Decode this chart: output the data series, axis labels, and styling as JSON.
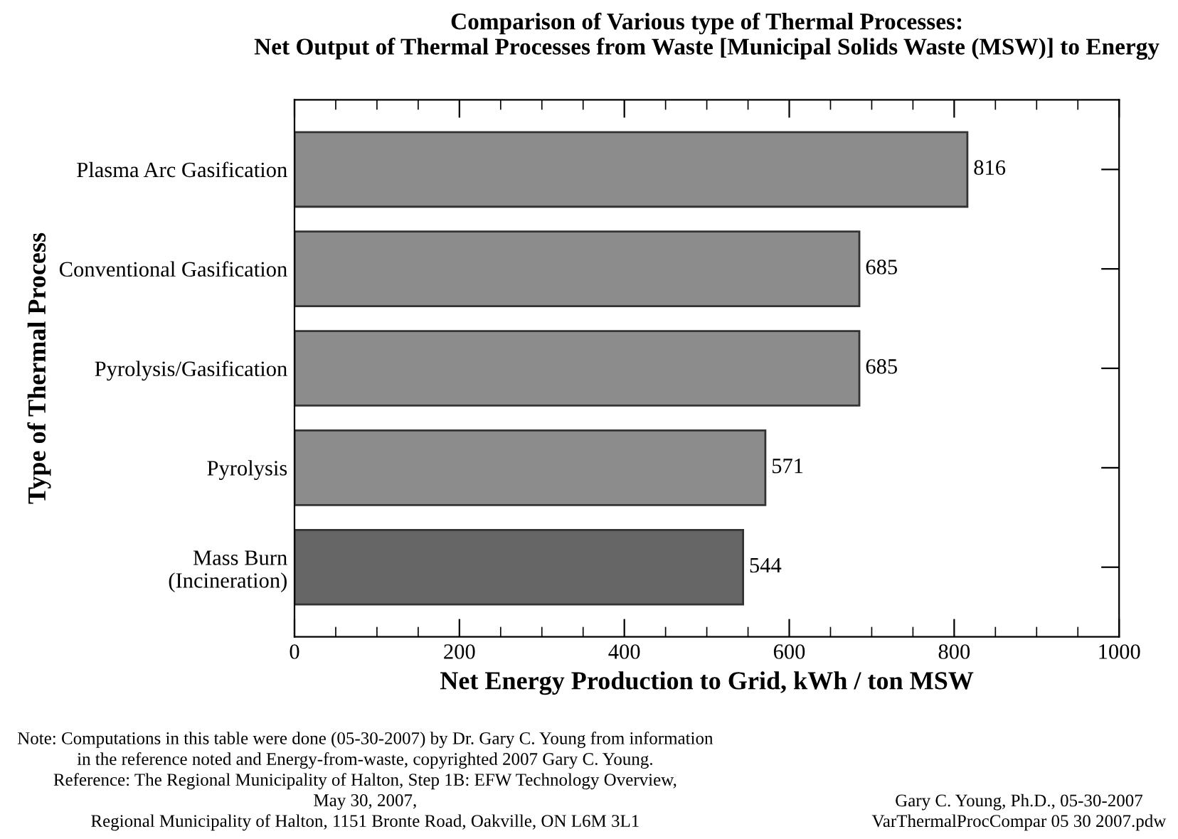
{
  "chart_data": {
    "type": "bar",
    "orientation": "horizontal",
    "title": "Comparison of Various type of Thermal Processes:\nNet Output of Thermal Processes from Waste [Municipal Solids Waste (MSW)] to Energy",
    "xlabel": "Net Energy Production to Grid, kWh / ton MSW",
    "ylabel": "Type of Thermal Process",
    "categories": [
      "Plasma Arc Gasification",
      "Conventional Gasification",
      "Pyrolysis/Gasification",
      "Pyrolysis",
      "Mass Burn\n(Incineration)"
    ],
    "values": [
      816,
      685,
      685,
      571,
      544
    ],
    "colors": [
      "#8c8c8c",
      "#8c8c8c",
      "#8c8c8c",
      "#8c8c8c",
      "#666666"
    ],
    "xlim": [
      0,
      1000
    ],
    "xticks": [
      0,
      200,
      400,
      600,
      800,
      1000
    ],
    "data_labels": true,
    "grid": false,
    "legend": false,
    "annotations": [
      "Note: Computations in this table were done (05-30-2007) by Dr. Gary C. Young from information\nin the reference noted and Energy-from-waste, copyrighted 2007 Gary C. Young.\nReference: The Regional Municipality of Halton, Step 1B: EFW Technology Overview,\nMay 30, 2007,\nRegional Municipality of Halton, 1151 Bronte Road, Oakville, ON L6M 3L1",
      "Gary C. Young, Ph.D., 05-30-2007\nVarThermalProcCompar 05 30 2007.pdw"
    ]
  }
}
